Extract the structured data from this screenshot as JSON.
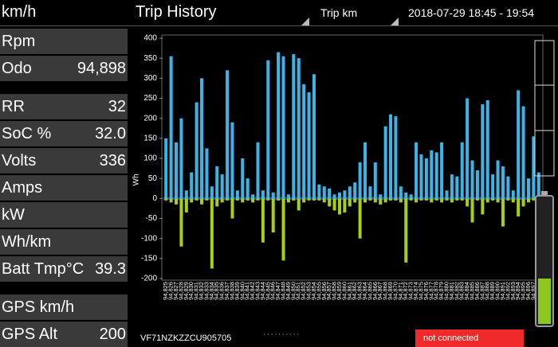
{
  "header": {
    "speed_label": "km/h",
    "title": "Trip History",
    "selector": "Trip km",
    "period": "2018-07-29 18:45 - 19:54"
  },
  "left_panel": {
    "rows": [
      {
        "label": "Rpm"
      },
      {
        "label": "Odo",
        "value": "94,898"
      },
      {
        "label": "RR",
        "value": "32"
      },
      {
        "label": "SoC %",
        "value": "32.0"
      },
      {
        "label": "Volts",
        "value": "336"
      },
      {
        "label": "Amps"
      },
      {
        "label": "kW"
      },
      {
        "label": "Wh/km"
      },
      {
        "label": "Batt Tmp°C",
        "value": "39.3"
      },
      {
        "label": "GPS km/h"
      },
      {
        "label": "GPS Alt",
        "value": "200"
      }
    ]
  },
  "footer": {
    "vin": "VF71NZKZZCU905705",
    "status": "not connected"
  },
  "chart_data": {
    "type": "bar",
    "y_label": "Wh",
    "categories": [
      "94,825",
      "94,826",
      "94,827",
      "94,828",
      "94,829",
      "94,830",
      "94,831",
      "94,832",
      "94,833",
      "94,834",
      "94,835",
      "94,836",
      "94,837",
      "94,838",
      "94,839",
      "94,840",
      "94,841",
      "94,842",
      "94,843",
      "94,844",
      "94,845",
      "94,846",
      "94,847",
      "94,848",
      "94,849",
      "94,850",
      "94,851",
      "94,852",
      "94,853",
      "94,854",
      "94,855",
      "94,856",
      "94,857",
      "94,858",
      "94,859",
      "94,860",
      "94,861",
      "94,862",
      "94,863",
      "94,864",
      "94,865",
      "94,866",
      "94,867",
      "94,868",
      "94,869",
      "94,870",
      "94,871",
      "94,872",
      "94,873",
      "94,874",
      "94,875",
      "94,876",
      "94,877",
      "94,878",
      "94,879",
      "94,880",
      "94,881",
      "94,882",
      "94,883",
      "94,884",
      "94,885",
      "94,886",
      "94,887",
      "94,888",
      "94,889",
      "94,890",
      "94,891",
      "94,892",
      "94,893",
      "94,894",
      "94,895",
      "94,896",
      "94,897",
      "94,898"
    ],
    "series": [
      {
        "color": "#3cb4e6",
        "values": [
          150,
          355,
          140,
          200,
          20,
          65,
          240,
          300,
          125,
          30,
          80,
          60,
          320,
          190,
          20,
          100,
          50,
          10,
          140,
          20,
          345,
          15,
          365,
          355,
          10,
          360,
          350,
          285,
          265,
          310,
          35,
          30,
          25,
          10,
          15,
          20,
          30,
          40,
          90,
          140,
          30,
          90,
          10,
          180,
          210,
          205,
          30,
          15,
          10,
          140,
          110,
          100,
          120,
          115,
          140,
          20,
          60,
          55,
          140,
          250,
          95,
          70,
          235,
          245,
          60,
          95,
          80,
          55,
          20,
          270,
          230,
          50,
          155,
          65
        ]
      },
      {
        "color": "#a6d010",
        "values": [
          -5,
          -10,
          -15,
          -120,
          -35,
          -10,
          -5,
          -15,
          -5,
          -175,
          -20,
          -10,
          -5,
          -50,
          -5,
          -10,
          -5,
          -10,
          -5,
          -110,
          -5,
          -85,
          -5,
          -155,
          -10,
          -5,
          -30,
          -10,
          -5,
          -5,
          -5,
          -10,
          -20,
          -30,
          -40,
          -35,
          -20,
          -10,
          -100,
          -10,
          -5,
          -10,
          -15,
          -10,
          -5,
          -5,
          -10,
          -160,
          -5,
          -10,
          -5,
          -5,
          -10,
          -5,
          -10,
          -5,
          -10,
          -5,
          -5,
          -20,
          -60,
          -5,
          -40,
          -10,
          -5,
          -10,
          -70,
          -5,
          -10,
          -45,
          -20,
          -10,
          -5,
          -15
        ]
      }
    ],
    "ylim": [
      -200,
      400
    ],
    "yticks": [
      -200,
      -150,
      -100,
      -50,
      0,
      50,
      100,
      150,
      200,
      250,
      300,
      350,
      400
    ]
  }
}
